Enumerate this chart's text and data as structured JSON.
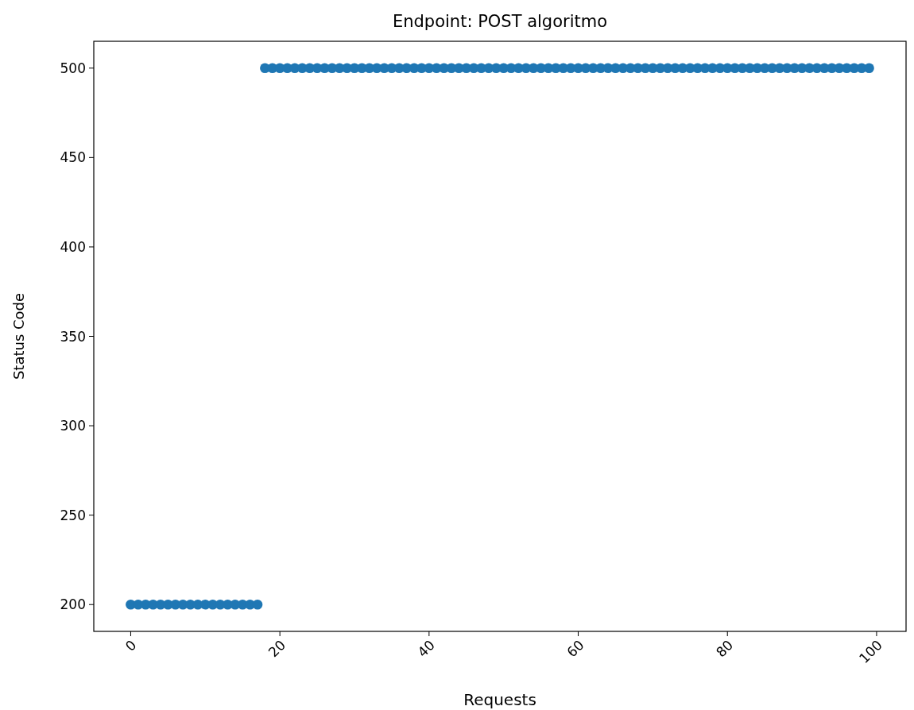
{
  "chart_data": {
    "type": "scatter",
    "title": "Endpoint: POST algoritmo",
    "xlabel": "Requests",
    "ylabel": "Status Code",
    "x": [
      0,
      1,
      2,
      3,
      4,
      5,
      6,
      7,
      8,
      9,
      10,
      11,
      12,
      13,
      14,
      15,
      16,
      17,
      18,
      19,
      20,
      21,
      22,
      23,
      24,
      25,
      26,
      27,
      28,
      29,
      30,
      31,
      32,
      33,
      34,
      35,
      36,
      37,
      38,
      39,
      40,
      41,
      42,
      43,
      44,
      45,
      46,
      47,
      48,
      49,
      50,
      51,
      52,
      53,
      54,
      55,
      56,
      57,
      58,
      59,
      60,
      61,
      62,
      63,
      64,
      65,
      66,
      67,
      68,
      69,
      70,
      71,
      72,
      73,
      74,
      75,
      76,
      77,
      78,
      79,
      80,
      81,
      82,
      83,
      84,
      85,
      86,
      87,
      88,
      89,
      90,
      91,
      92,
      93,
      94,
      95,
      96,
      97,
      98,
      99
    ],
    "values": [
      200,
      200,
      200,
      200,
      200,
      200,
      200,
      200,
      200,
      200,
      200,
      200,
      200,
      200,
      200,
      200,
      200,
      200,
      500,
      500,
      500,
      500,
      500,
      500,
      500,
      500,
      500,
      500,
      500,
      500,
      500,
      500,
      500,
      500,
      500,
      500,
      500,
      500,
      500,
      500,
      500,
      500,
      500,
      500,
      500,
      500,
      500,
      500,
      500,
      500,
      500,
      500,
      500,
      500,
      500,
      500,
      500,
      500,
      500,
      500,
      500,
      500,
      500,
      500,
      500,
      500,
      500,
      500,
      500,
      500,
      500,
      500,
      500,
      500,
      500,
      500,
      500,
      500,
      500,
      500,
      500,
      500,
      500,
      500,
      500,
      500,
      500,
      500,
      500,
      500,
      500,
      500,
      500,
      500,
      500,
      500,
      500,
      500,
      500,
      500
    ],
    "color": "#1f77b4",
    "marker": "circle",
    "xlim": [
      -4.95,
      103.95
    ],
    "xticks": [
      0,
      20,
      40,
      60,
      80,
      100
    ],
    "ylim": [
      185,
      515
    ],
    "yticks": [
      200,
      250,
      300,
      350,
      400,
      450,
      500
    ]
  }
}
